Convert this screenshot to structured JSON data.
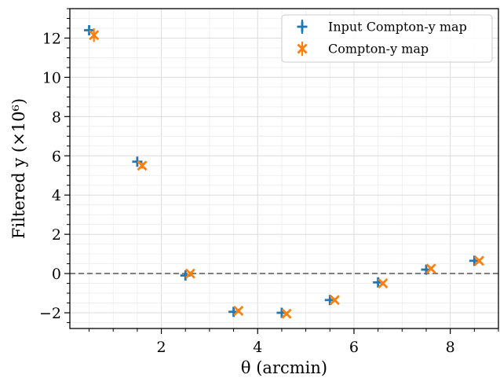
{
  "chart_data": {
    "type": "scatter",
    "xlabel": "θ (arcmin)",
    "ylabel": "Filtered y (×10⁶)",
    "xlim": [
      0.1,
      9.0
    ],
    "ylim": [
      -2.8,
      13.5
    ],
    "x_ticks": [
      2,
      4,
      6,
      8
    ],
    "y_ticks": [
      -2,
      0,
      2,
      4,
      6,
      8,
      10,
      12
    ],
    "x_tick_labels": [
      "2",
      "4",
      "6",
      "8"
    ],
    "y_tick_labels": [
      "−2",
      "0",
      "2",
      "4",
      "6",
      "8",
      "10",
      "12"
    ],
    "reference_line": {
      "y": 0,
      "style": "dashed",
      "color": "#777777"
    },
    "grid": true,
    "legend_position": "top-right",
    "series": [
      {
        "name": "Input Compton-y map",
        "color": "#1f77b4",
        "marker": "plus",
        "x": [
          0.5,
          1.5,
          2.5,
          3.5,
          4.5,
          5.5,
          6.5,
          7.5,
          8.5
        ],
        "y": [
          12.4,
          5.7,
          -0.1,
          -1.95,
          -2.0,
          -1.35,
          -0.45,
          0.2,
          0.65
        ],
        "yerr": [
          0.25,
          0.1,
          0.05,
          0.05,
          0.05,
          0.05,
          0.05,
          0.05,
          0.05
        ]
      },
      {
        "name": "Compton-y map",
        "color": "#ff7f0e",
        "marker": "x",
        "x": [
          0.6,
          1.6,
          2.6,
          3.6,
          4.6,
          5.6,
          6.6,
          7.6,
          8.6
        ],
        "y": [
          12.15,
          5.5,
          0.0,
          -1.9,
          -2.05,
          -1.35,
          -0.5,
          0.25,
          0.65
        ],
        "yerr": [
          0.35,
          0.15,
          0.1,
          0.1,
          0.1,
          0.1,
          0.1,
          0.1,
          0.1
        ]
      }
    ]
  }
}
